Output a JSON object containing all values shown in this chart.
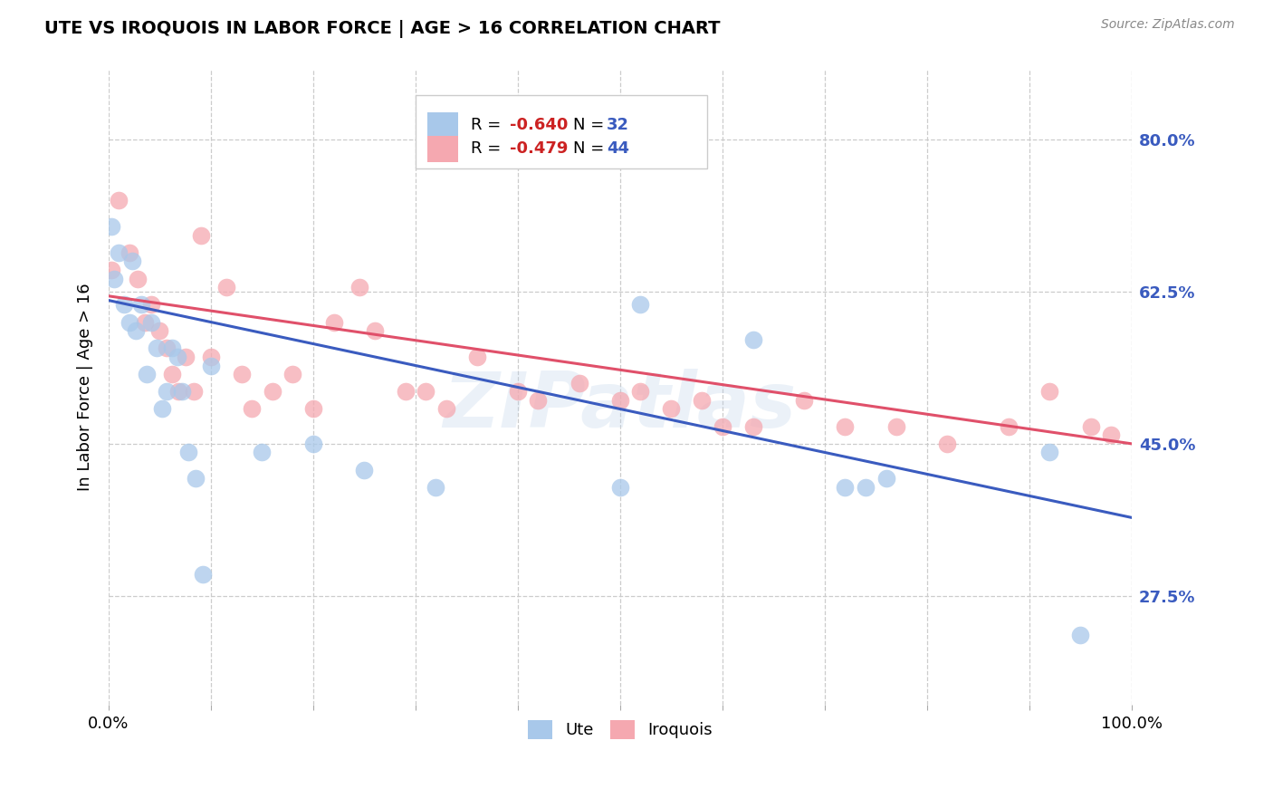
{
  "title": "UTE VS IROQUOIS IN LABOR FORCE | AGE > 16 CORRELATION CHART",
  "source": "Source: ZipAtlas.com",
  "ylabel": "In Labor Force | Age > 16",
  "xlim": [
    0.0,
    1.0
  ],
  "ylim": [
    0.15,
    0.88
  ],
  "yticks": [
    0.275,
    0.45,
    0.625,
    0.8
  ],
  "ytick_labels": [
    "27.5%",
    "45.0%",
    "62.5%",
    "80.0%"
  ],
  "xtick_positions": [
    0.0,
    0.1,
    0.2,
    0.3,
    0.4,
    0.5,
    0.6,
    0.7,
    0.8,
    0.9,
    1.0
  ],
  "xtick_labels": [
    "0.0%",
    "",
    "",
    "",
    "",
    "",
    "",
    "",
    "",
    "",
    "100.0%"
  ],
  "ute_color": "#a8c8ea",
  "iroquois_color": "#f5a8b0",
  "ute_line_color": "#3a5bbf",
  "iroquois_line_color": "#e0506a",
  "legend_ute_R": "-0.640",
  "legend_ute_N": "32",
  "legend_iroquois_R": "-0.479",
  "legend_iroquois_N": "44",
  "watermark": "ZIPatlas",
  "ute_line_x0": 0.0,
  "ute_line_y0": 0.615,
  "ute_line_x1": 1.0,
  "ute_line_y1": 0.365,
  "iroquois_line_x0": 0.0,
  "iroquois_line_y0": 0.62,
  "iroquois_line_x1": 1.0,
  "iroquois_line_y1": 0.45,
  "ute_x": [
    0.003,
    0.005,
    0.01,
    0.015,
    0.02,
    0.023,
    0.027,
    0.032,
    0.037,
    0.042,
    0.047,
    0.052,
    0.057,
    0.062,
    0.067,
    0.072,
    0.078,
    0.085,
    0.092,
    0.1,
    0.15,
    0.2,
    0.25,
    0.32,
    0.5,
    0.52,
    0.63,
    0.72,
    0.74,
    0.76,
    0.92,
    0.95
  ],
  "ute_y": [
    0.7,
    0.64,
    0.67,
    0.61,
    0.59,
    0.66,
    0.58,
    0.61,
    0.53,
    0.59,
    0.56,
    0.49,
    0.51,
    0.56,
    0.55,
    0.51,
    0.44,
    0.41,
    0.3,
    0.54,
    0.44,
    0.45,
    0.42,
    0.4,
    0.4,
    0.61,
    0.57,
    0.4,
    0.4,
    0.41,
    0.44,
    0.23
  ],
  "iroquois_x": [
    0.003,
    0.01,
    0.02,
    0.028,
    0.035,
    0.042,
    0.05,
    0.057,
    0.062,
    0.068,
    0.075,
    0.083,
    0.09,
    0.1,
    0.115,
    0.13,
    0.14,
    0.16,
    0.18,
    0.2,
    0.22,
    0.245,
    0.26,
    0.29,
    0.31,
    0.33,
    0.36,
    0.4,
    0.42,
    0.46,
    0.5,
    0.52,
    0.55,
    0.58,
    0.6,
    0.63,
    0.68,
    0.72,
    0.77,
    0.82,
    0.88,
    0.92,
    0.96,
    0.98
  ],
  "iroquois_y": [
    0.65,
    0.73,
    0.67,
    0.64,
    0.59,
    0.61,
    0.58,
    0.56,
    0.53,
    0.51,
    0.55,
    0.51,
    0.69,
    0.55,
    0.63,
    0.53,
    0.49,
    0.51,
    0.53,
    0.49,
    0.59,
    0.63,
    0.58,
    0.51,
    0.51,
    0.49,
    0.55,
    0.51,
    0.5,
    0.52,
    0.5,
    0.51,
    0.49,
    0.5,
    0.47,
    0.47,
    0.5,
    0.47,
    0.47,
    0.45,
    0.47,
    0.51,
    0.47,
    0.46
  ]
}
